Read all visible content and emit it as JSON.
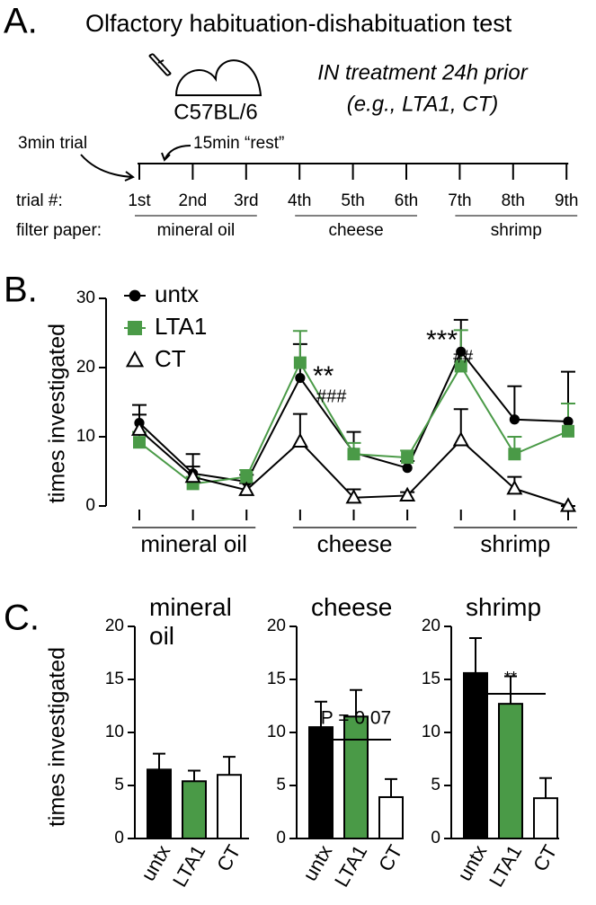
{
  "panel_labels": [
    "A.",
    "B.",
    "C."
  ],
  "protocol": {
    "title": "Olfactory habituation-dishabituation test",
    "mouse_strain": "C57BL/6",
    "treatment": "IN treatment 24h prior",
    "treatment_example": "(e.g., LTA1, CT)",
    "trial_duration": "3min trial",
    "rest": "15min “rest”",
    "trial_label": "trial #:",
    "trials": [
      "1st",
      "2nd",
      "3rd",
      "4th",
      "5th",
      "6th",
      "7th",
      "8th",
      "9th"
    ],
    "filter_label": "filter paper:",
    "filter_groups": [
      "mineral oil",
      "cheese",
      "shrimp"
    ]
  },
  "chart_data": [
    {
      "type": "line",
      "ylabel": "times investigated",
      "categories": [
        null,
        null,
        null,
        null,
        null,
        null,
        null,
        null,
        null
      ],
      "group_labels": [
        "mineral oil",
        "cheese",
        "shrimp"
      ],
      "ylim": [
        0,
        30
      ],
      "yticks": [
        0,
        10,
        20,
        30
      ],
      "series": [
        {
          "name": "untx",
          "color": "#000000",
          "marker": "circle",
          "values": [
            12,
            4.7,
            3.5,
            18.5,
            7.7,
            5.5,
            22.3,
            12.5,
            12.2
          ],
          "errors": [
            2.6,
            2.8,
            1,
            4.9,
            3,
            1,
            4.6,
            4.8,
            7.2
          ]
        },
        {
          "name": "LTA1",
          "color": "#4a9a47",
          "marker": "square",
          "values": [
            9.2,
            3.2,
            4.2,
            20.7,
            7.5,
            7,
            20.2,
            7.5,
            10.8
          ],
          "errors": [
            1.5,
            1,
            1,
            4.6,
            1.6,
            1,
            5.2,
            2.5,
            4
          ]
        },
        {
          "name": "CT",
          "color": "#000000",
          "marker": "triangle",
          "values": [
            11,
            4.2,
            2.3,
            9.3,
            1.2,
            1.5,
            9.5,
            2.5,
            0
          ],
          "errors": [
            2.2,
            1.5,
            1,
            4,
            1.2,
            0.5,
            4.5,
            1.7,
            0
          ]
        }
      ],
      "annotations": [
        "**",
        "###",
        "***",
        "##"
      ]
    },
    {
      "type": "bar",
      "title": "mineral oil",
      "ylabel": "times investigated",
      "categories": [
        "untx",
        "LTA1",
        "CT"
      ],
      "values": [
        6.5,
        5.4,
        6.0
      ],
      "errors": [
        1.5,
        1,
        1.7
      ],
      "colors": [
        "#000000",
        "#4a9a47",
        "#ffffff"
      ],
      "ylim": [
        0,
        20
      ],
      "yticks": [
        0,
        5,
        10,
        15,
        20
      ]
    },
    {
      "type": "bar",
      "title": "cheese",
      "categories": [
        "untx",
        "LTA1",
        "CT"
      ],
      "values": [
        10.5,
        11.5,
        3.9
      ],
      "errors": [
        2.4,
        2.5,
        1.7
      ],
      "colors": [
        "#000000",
        "#4a9a47",
        "#ffffff"
      ],
      "ylim": [
        0,
        20
      ],
      "yticks": [
        0,
        5,
        10,
        15,
        20
      ],
      "annotation": "P = 0.07"
    },
    {
      "type": "bar",
      "title": "shrimp",
      "categories": [
        "untx",
        "LTA1",
        "CT"
      ],
      "values": [
        15.6,
        12.7,
        3.8
      ],
      "errors": [
        3.3,
        2.6,
        1.9
      ],
      "colors": [
        "#000000",
        "#4a9a47",
        "#ffffff"
      ],
      "ylim": [
        0,
        20
      ],
      "yticks": [
        0,
        5,
        10,
        15,
        20
      ],
      "annotation": "**"
    }
  ]
}
